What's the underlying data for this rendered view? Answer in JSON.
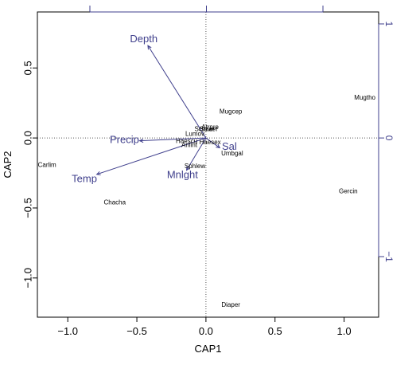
{
  "chart_data": {
    "type": "scatter",
    "xlabel": "CAP1",
    "ylabel": "CAP2",
    "xlim": [
      -1.22,
      1.25
    ],
    "ylim": [
      -1.28,
      0.9
    ],
    "x_ticks": [
      -1.0,
      -0.5,
      0.0,
      0.5,
      1.0
    ],
    "x_tick_labels": [
      "−1.0",
      "−0.5",
      "0.0",
      "0.5",
      "1.0"
    ],
    "y_ticks": [
      0.5,
      0.0,
      -0.5,
      -1.0
    ],
    "y_tick_labels": [
      "0.5",
      "0.0",
      "−0.5",
      "−1.0"
    ],
    "right_axis_ticks": [
      1,
      0,
      -1
    ],
    "right_axis_tick_labels": [
      "1",
      "0",
      "−1"
    ],
    "grid": false,
    "reference_lines_at_zero": true,
    "species": [
      {
        "label": "Mugtho",
        "x": 1.15,
        "y": 0.29
      },
      {
        "label": "Mugcep",
        "x": 0.18,
        "y": 0.19
      },
      {
        "label": "Carlim",
        "x": -1.15,
        "y": -0.19
      },
      {
        "label": "Chacha",
        "x": -0.66,
        "y": -0.46
      },
      {
        "label": "Gercin",
        "x": 1.03,
        "y": -0.38
      },
      {
        "label": "Diaper",
        "x": 0.18,
        "y": -1.19
      },
      {
        "label": "Umbgal",
        "x": 0.19,
        "y": -0.11
      },
      {
        "label": "Sphlew",
        "x": -0.08,
        "y": -0.2
      },
      {
        "label": "Lumov",
        "x": -0.08,
        "y": 0.03
      },
      {
        "label": "Haescu",
        "x": -0.14,
        "y": -0.02
      },
      {
        "label": "Haesex",
        "x": 0.03,
        "y": -0.03
      },
      {
        "label": "Anlint",
        "x": -0.12,
        "y": -0.05
      },
      {
        "label": "Atrpre",
        "x": 0.03,
        "y": 0.08
      },
      {
        "label": "Solaer",
        "x": 0.02,
        "y": 0.065
      },
      {
        "label": "Scoaer",
        "x": -0.01,
        "y": 0.065
      }
    ],
    "vectors": [
      {
        "label": "Depth",
        "x": -0.42,
        "y": 0.66,
        "label_x": -0.45,
        "label_y": 0.71
      },
      {
        "label": "Precip",
        "x": -0.48,
        "y": -0.02,
        "label_x": -0.59,
        "label_y": -0.01
      },
      {
        "label": "Temp",
        "x": -0.79,
        "y": -0.26,
        "label_x": -0.88,
        "label_y": -0.29
      },
      {
        "label": "Mnlght",
        "x": -0.14,
        "y": -0.23,
        "label_x": -0.17,
        "label_y": -0.26
      },
      {
        "label": "Sal",
        "x": 0.1,
        "y": -0.07,
        "label_x": 0.17,
        "label_y": -0.06
      }
    ],
    "colors": {
      "vectors": "#3f3f8c",
      "points": "#000000",
      "reference": "#555555",
      "frame": "#000000"
    }
  }
}
